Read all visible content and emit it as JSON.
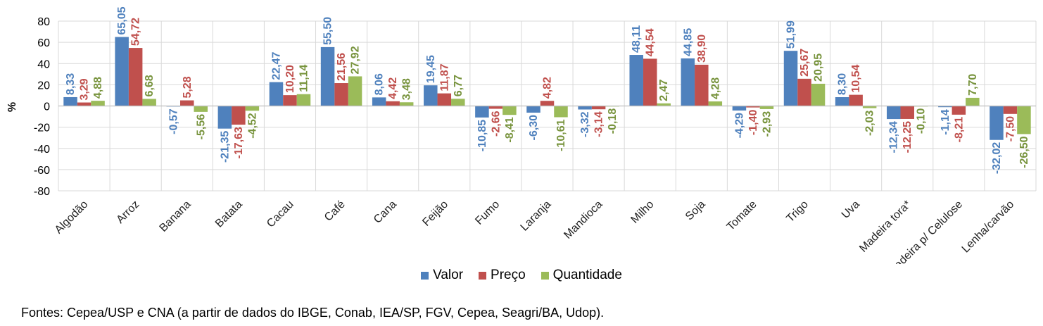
{
  "chart_data": {
    "type": "bar",
    "ylabel": "%",
    "ylim": [
      -80,
      80
    ],
    "yticks": [
      80,
      60,
      40,
      20,
      0,
      -20,
      -40,
      -60,
      -80
    ],
    "grid": true,
    "legend": "bottom",
    "categories": [
      "Algodão",
      "Arroz",
      "Banana",
      "Batata",
      "Cacau",
      "Café",
      "Cana",
      "Feijão",
      "Fumo",
      "Laranja",
      "Mandioca",
      "Milho",
      "Soja",
      "Tomate",
      "Trigo",
      "Uva",
      "Madeira tora*",
      "Madeira p/ Celulose",
      "Lenha/carvão"
    ],
    "series": [
      {
        "name": "Valor",
        "color": "#4F81BD",
        "values": [
          8.33,
          65.05,
          -0.57,
          -21.35,
          22.47,
          55.5,
          8.06,
          19.45,
          -10.85,
          -6.3,
          -3.32,
          48.11,
          44.85,
          -4.29,
          51.99,
          8.3,
          -12.34,
          -1.14,
          -32.02
        ],
        "labels": [
          "8,33",
          "65,05",
          "-0,57",
          "-21,35",
          "22,47",
          "55,50",
          "8,06",
          "19,45",
          "-10,85",
          "-6,30",
          "-3,32",
          "48,11",
          "44,85",
          "-4,29",
          "51,99",
          "8,30",
          "-12,34",
          "-1,14",
          "-32,02"
        ]
      },
      {
        "name": "Preço",
        "color": "#C0504D",
        "values": [
          3.29,
          54.72,
          5.28,
          -17.63,
          10.2,
          21.56,
          4.42,
          11.87,
          -2.66,
          4.82,
          -3.14,
          44.54,
          38.9,
          -1.4,
          25.67,
          10.54,
          -12.25,
          -8.21,
          -7.5
        ],
        "labels": [
          "3,29",
          "54,72",
          "5,28",
          "-17,63",
          "10,20",
          "21,56",
          "4,42",
          "11,87",
          "-2,66",
          "4,82",
          "-3,14",
          "44,54",
          "38,90",
          "-1,40",
          "25,67",
          "10,54",
          "-12,25",
          "-8,21",
          "-7,50"
        ]
      },
      {
        "name": "Quantidade",
        "color": "#9BBB59",
        "values": [
          4.88,
          6.68,
          -5.56,
          -4.52,
          11.14,
          27.92,
          3.48,
          6.77,
          -8.41,
          -10.61,
          -0.18,
          2.47,
          4.28,
          -2.93,
          20.95,
          -2.03,
          -0.1,
          7.7,
          -26.5
        ],
        "labels": [
          "4,88",
          "6,68",
          "-5,56",
          "-4,52",
          "11,14",
          "27,92",
          "3,48",
          "6,77",
          "-8,41",
          "-10,61",
          "-0,18",
          "2,47",
          "4,28",
          "-2,93",
          "20,95",
          "-2,03",
          "-0,10",
          "7,70",
          "-26,50"
        ],
        "label_color": "#77933C"
      }
    ]
  },
  "legend_items": [
    {
      "label": "Valor",
      "color": "#4F81BD"
    },
    {
      "label": "Preço",
      "color": "#C0504D"
    },
    {
      "label": "Quantidade",
      "color": "#9BBB59"
    }
  ],
  "source": "Fontes: Cepea/USP e CNA (a partir de dados do IBGE, Conab, IEA/SP, FGV, Cepea, Seagri/BA, Udop)."
}
